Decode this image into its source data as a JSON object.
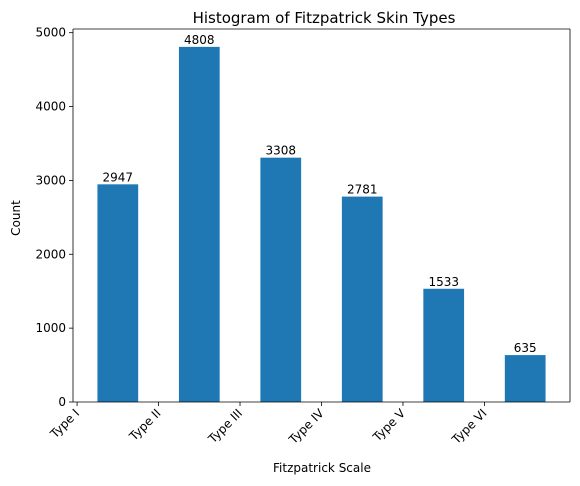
{
  "chart_data": {
    "type": "bar",
    "title": "Histogram of Fitzpatrick Skin Types",
    "xlabel": "Fitzpatrick Scale",
    "ylabel": "Count",
    "categories": [
      "Type I",
      "Type II",
      "Type III",
      "Type IV",
      "Type V",
      "Type VI"
    ],
    "values": [
      2947,
      4808,
      3308,
      2781,
      1533,
      635
    ],
    "ylim": [
      0,
      5050
    ],
    "yticks": [
      0,
      1000,
      2000,
      3000,
      4000,
      5000
    ],
    "grid": false,
    "bar_color": "#1f77b4",
    "data_labels": true
  }
}
